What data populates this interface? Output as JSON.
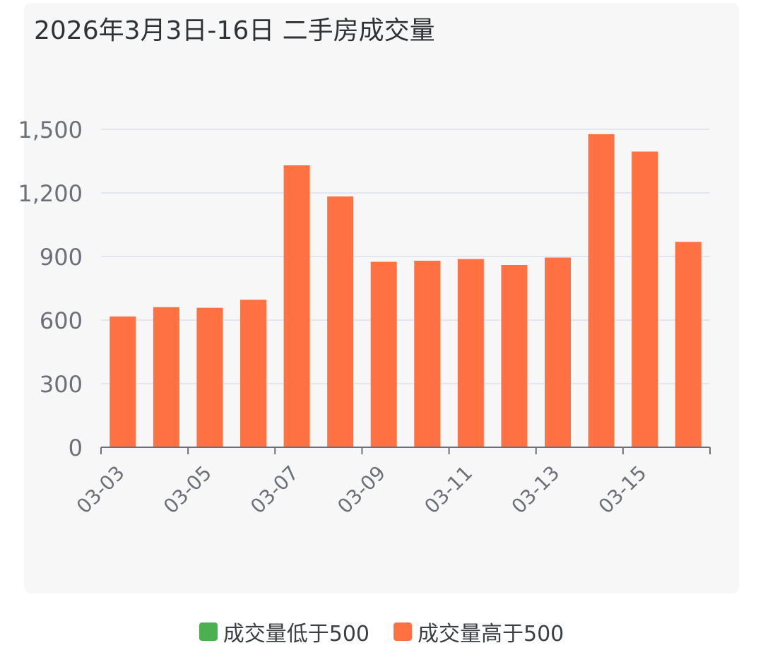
{
  "colors": {
    "low": "#4caf50",
    "high": "#ff7043",
    "grid": "#e3e6ef",
    "axis": "#6e7079",
    "tick_text": "#6e7079"
  },
  "legend": {
    "low_label": "成交量低于500",
    "high_label": "成交量高于500"
  },
  "chart_data": {
    "type": "bar",
    "title": "2026年3月3日-16日 二手房成交量",
    "xlabel": "",
    "ylabel": "",
    "ylim": [
      0,
      1500
    ],
    "yticks": [
      0,
      300,
      600,
      900,
      1200,
      1500
    ],
    "ytick_labels": [
      "0",
      "300",
      "600",
      "900",
      "1,200",
      "1,500"
    ],
    "categories": [
      "03-03",
      "03-04",
      "03-05",
      "03-06",
      "03-07",
      "03-08",
      "03-09",
      "03-10",
      "03-11",
      "03-12",
      "03-13",
      "03-14",
      "03-15",
      "03-16"
    ],
    "xtick_labels_shown": [
      "03-03",
      "03-05",
      "03-07",
      "03-09",
      "03-11",
      "03-13",
      "03-15"
    ],
    "values": [
      617,
      661,
      658,
      696,
      1330,
      1183,
      875,
      880,
      888,
      860,
      895,
      1477,
      1395,
      969
    ],
    "threshold": 500,
    "grid": true,
    "legend_position": "bottom"
  }
}
